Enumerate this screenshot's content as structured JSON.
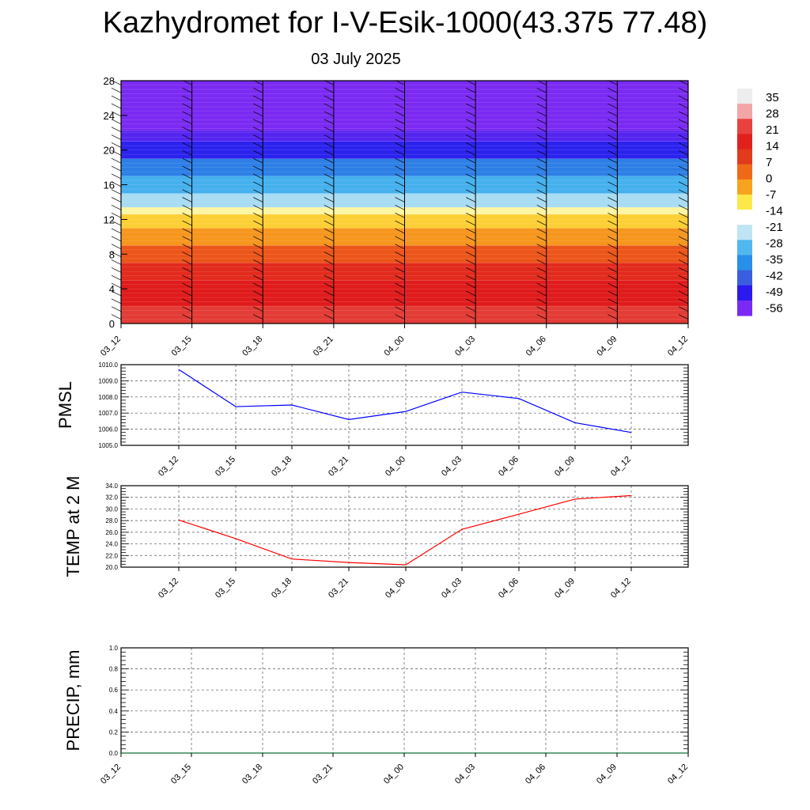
{
  "title": "Kazhydromet for I-V-Esik-1000(43.375 77.48)",
  "subtitle": "03 July 2025",
  "colorbar": {
    "labels": [
      "35",
      "28",
      "21",
      "14",
      "7",
      "0",
      "-7",
      "-14",
      "-21",
      "-28",
      "-35",
      "-42",
      "-49",
      "-56"
    ],
    "colors": [
      "#ededed",
      "#f2a6a6",
      "#e8423f",
      "#e0211c",
      "#e23a1c",
      "#ee6a18",
      "#f7a31f",
      "#fde84b",
      "#ffffff",
      "#bfe4f4",
      "#52b7ee",
      "#2a8fe8",
      "#3b5ee0",
      "#2a1aee",
      "#7a2af2"
    ]
  },
  "chart_data": [
    {
      "type": "heatmap",
      "name": "vertical-profile",
      "x": [
        "03_12",
        "03_15",
        "03_18",
        "03_21",
        "04_00",
        "04_03",
        "04_06",
        "04_09",
        "04_12"
      ],
      "ylim": [
        0,
        28
      ],
      "yticks": [
        "0",
        "4",
        "8",
        "12",
        "16",
        "20",
        "24",
        "28"
      ],
      "bands": [
        {
          "from": 0,
          "to": 2,
          "color": "#e33b35"
        },
        {
          "from": 2,
          "to": 5,
          "color": "#e01b1c"
        },
        {
          "from": 5,
          "to": 7,
          "color": "#e22a1d"
        },
        {
          "from": 7,
          "to": 9,
          "color": "#ec5519"
        },
        {
          "from": 9,
          "to": 11,
          "color": "#f6961d"
        },
        {
          "from": 11,
          "to": 12.6,
          "color": "#fccf34"
        },
        {
          "from": 12.6,
          "to": 13.4,
          "color": "#fdf6a2"
        },
        {
          "from": 13.4,
          "to": 15,
          "color": "#a7dcf3"
        },
        {
          "from": 15,
          "to": 17,
          "color": "#45b0ee"
        },
        {
          "from": 17,
          "to": 19,
          "color": "#2d7fe6"
        },
        {
          "from": 19,
          "to": 21,
          "color": "#2b22ee"
        },
        {
          "from": 21,
          "to": 22.2,
          "color": "#5424f0"
        },
        {
          "from": 22.2,
          "to": 28,
          "color": "#7a2af2"
        }
      ]
    },
    {
      "type": "line",
      "name": "PMSL",
      "ylabel": "PMSL",
      "categories": [
        "03_12",
        "03_15",
        "03_18",
        "03_21",
        "04_00",
        "04_03",
        "04_06",
        "04_09",
        "04_12"
      ],
      "ylim": [
        1005.0,
        1010.0
      ],
      "yticks": [
        "1005.0",
        "1006.0",
        "1007.0",
        "1008.0",
        "1009.0",
        "1010.0"
      ],
      "values": [
        1009.7,
        1007.4,
        1007.5,
        1006.6,
        1007.1,
        1008.3,
        1007.9,
        1006.4,
        1005.8
      ],
      "color": "#0000ff"
    },
    {
      "type": "line",
      "name": "TEMP at 2 M",
      "ylabel": "TEMP at 2 M",
      "categories": [
        "03_12",
        "03_15",
        "03_18",
        "03_21",
        "04_00",
        "04_03",
        "04_06",
        "04_09",
        "04_12"
      ],
      "ylim": [
        20.0,
        34.0
      ],
      "yticks": [
        "20.0",
        "22.0",
        "24.0",
        "26.0",
        "28.0",
        "30.0",
        "32.0",
        "34.0"
      ],
      "values": [
        28.1,
        24.9,
        21.4,
        20.8,
        20.4,
        26.5,
        29.1,
        31.7,
        32.3
      ],
      "color": "#ff0000"
    },
    {
      "type": "line",
      "name": "PRECIP, mm",
      "ylabel": "PRECIP, mm",
      "categories": [
        "03_12",
        "03_15",
        "03_18",
        "03_21",
        "04_00",
        "04_03",
        "04_06",
        "04_09",
        "04_12"
      ],
      "ylim": [
        0.0,
        1.0
      ],
      "yticks": [
        "0.0",
        "0.2",
        "0.4",
        "0.6",
        "0.8",
        "1.0"
      ],
      "values": [
        0,
        0,
        0,
        0,
        0,
        0,
        0,
        0,
        0
      ],
      "color": "#2e8b57"
    }
  ]
}
